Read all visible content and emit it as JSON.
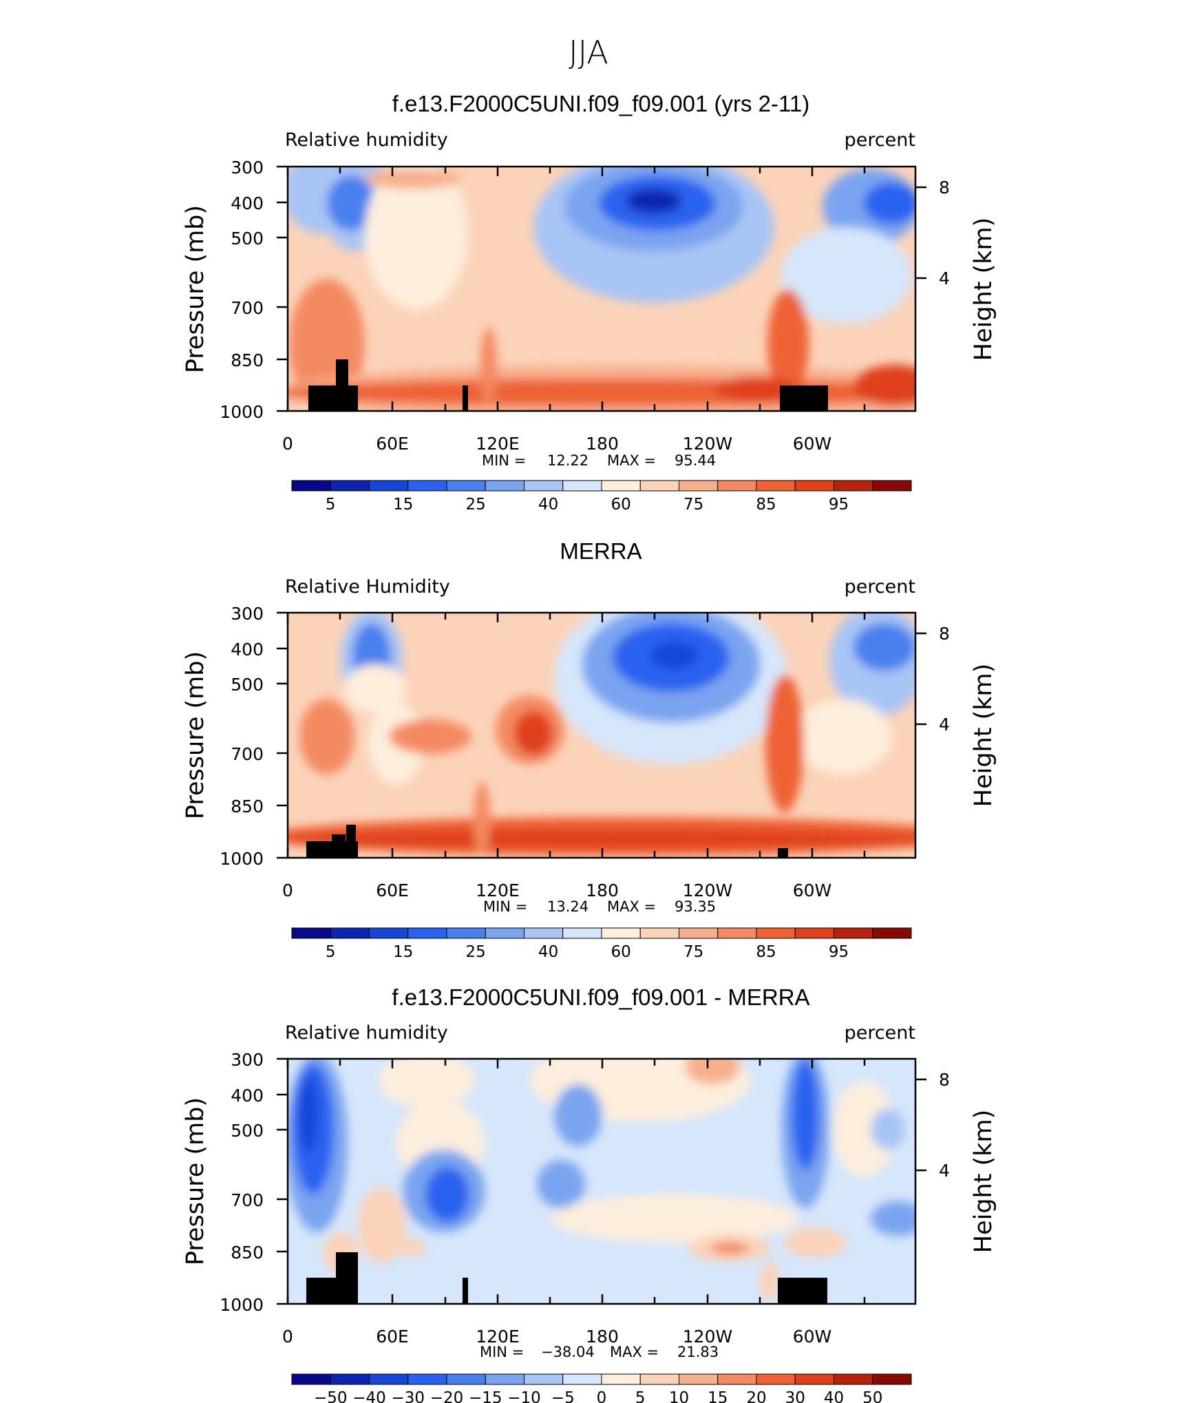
{
  "page_title": "JJA",
  "chart_data": [
    {
      "type": "heatmap",
      "title": "f.e13.F2000C5UNI.f09_f09.001 (yrs 2-11)",
      "left_label": "Relative  humidity",
      "right_label": "percent",
      "ylabel": "Pressure  (mb)",
      "y2label": "Height  (km)",
      "y_ticks": [
        "300",
        "400",
        "500",
        "700",
        "850",
        "1000"
      ],
      "y2_ticks": [
        "8",
        "4"
      ],
      "x_ticks": [
        "0",
        "60E",
        "120E",
        "180",
        "120W",
        "60W"
      ],
      "stats": {
        "min_label": "MIN =",
        "min": "12.22",
        "max_label": "MAX =",
        "max": "95.44"
      },
      "colorbar_labels": [
        "5",
        "15",
        "25",
        "40",
        "60",
        "75",
        "85",
        "95"
      ],
      "colors": [
        "#08088a",
        "#0b25b0",
        "#1446d8",
        "#2962f0",
        "#4a80ee",
        "#7aa4f0",
        "#a9c5f5",
        "#d6e6fb",
        "#fdeedd",
        "#fbd3b9",
        "#f7b08e",
        "#f48a62",
        "#ee6234",
        "#e0401a",
        "#b7220c",
        "#860a06"
      ]
    },
    {
      "type": "heatmap",
      "title": "MERRA",
      "left_label": "Relative  Humidity",
      "right_label": "percent",
      "ylabel": "Pressure  (mb)",
      "y2label": "Height  (km)",
      "y_ticks": [
        "300",
        "400",
        "500",
        "700",
        "850",
        "1000"
      ],
      "y2_ticks": [
        "8",
        "4"
      ],
      "x_ticks": [
        "0",
        "60E",
        "120E",
        "180",
        "120W",
        "60W"
      ],
      "stats": {
        "min_label": "MIN =",
        "min": "13.24",
        "max_label": "MAX =",
        "max": "93.35"
      },
      "colorbar_labels": [
        "5",
        "15",
        "25",
        "40",
        "60",
        "75",
        "85",
        "95"
      ],
      "colors": [
        "#08088a",
        "#0b25b0",
        "#1446d8",
        "#2962f0",
        "#4a80ee",
        "#7aa4f0",
        "#a9c5f5",
        "#d6e6fb",
        "#fdeedd",
        "#fbd3b9",
        "#f7b08e",
        "#f48a62",
        "#ee6234",
        "#e0401a",
        "#b7220c",
        "#860a06"
      ]
    },
    {
      "type": "heatmap",
      "title": "f.e13.F2000C5UNI.f09_f09.001 - MERRA",
      "left_label": "Relative  humidity",
      "right_label": "percent",
      "ylabel": "Pressure  (mb)",
      "y2label": "Height  (km)",
      "y_ticks": [
        "300",
        "400",
        "500",
        "700",
        "850",
        "1000"
      ],
      "y2_ticks": [
        "8",
        "4"
      ],
      "x_ticks": [
        "0",
        "60E",
        "120E",
        "180",
        "120W",
        "60W"
      ],
      "stats": {
        "min_label": "MIN =",
        "min": "−38.04",
        "max_label": "MAX =",
        "max": "21.83"
      },
      "colorbar_labels": [
        "−50",
        "−40",
        "−30",
        "−20",
        "−15",
        "−10",
        "−5",
        "0",
        "5",
        "10",
        "15",
        "20",
        "30",
        "40",
        "50"
      ],
      "colors": [
        "#08088a",
        "#0b25b0",
        "#1446d8",
        "#2962f0",
        "#4a80ee",
        "#7aa4f0",
        "#a9c5f5",
        "#d6e6fb",
        "#fdeedd",
        "#fbd3b9",
        "#f7b08e",
        "#f48a62",
        "#ee6234",
        "#e0401a",
        "#b7220c",
        "#860a06"
      ]
    }
  ]
}
